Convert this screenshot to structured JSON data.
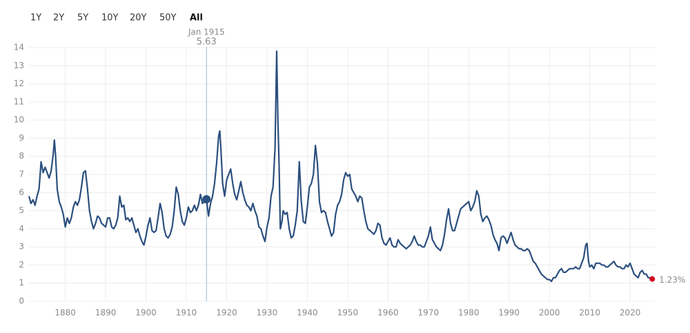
{
  "chart_data": {
    "type": "line",
    "range_buttons": [
      "1Y",
      "2Y",
      "5Y",
      "10Y",
      "20Y",
      "50Y",
      "All"
    ],
    "selected_range": "All",
    "color": "#2b4f7e",
    "grid": true,
    "xlim": [
      1871,
      2026.3
    ],
    "xticks": [
      1880,
      1890,
      1900,
      1910,
      1920,
      1930,
      1940,
      1950,
      1960,
      1970,
      1980,
      1990,
      2000,
      2010,
      2020
    ],
    "ylim": [
      0,
      14
    ],
    "yticks": [
      0,
      1,
      2,
      3,
      4,
      5,
      6,
      7,
      8,
      9,
      10,
      11,
      12,
      13,
      14
    ],
    "hover": {
      "label": "Jan 1915",
      "x": 1915,
      "value": 5.63,
      "color": "#2b4f7e",
      "line_color": "#9bb8cc"
    },
    "current": {
      "value": 1.23,
      "label": "1.23%",
      "color": "#d0021b"
    },
    "x": [
      1871,
      1871.5,
      1872,
      1872.5,
      1873,
      1873.5,
      1874,
      1874.5,
      1875,
      1875.5,
      1876,
      1876.5,
      1877,
      1877.3,
      1877.6,
      1878,
      1878.5,
      1879,
      1879.5,
      1880,
      1880.5,
      1881,
      1881.5,
      1882,
      1882.5,
      1883,
      1883.5,
      1884,
      1884.5,
      1885,
      1885.5,
      1886,
      1886.5,
      1887,
      1887.5,
      1888,
      1888.5,
      1889,
      1889.5,
      1890,
      1890.5,
      1891,
      1891.5,
      1892,
      1892.5,
      1893,
      1893.5,
      1894,
      1894.5,
      1895,
      1895.5,
      1896,
      1896.5,
      1897,
      1897.5,
      1898,
      1898.5,
      1899,
      1899.5,
      1900,
      1900.5,
      1901,
      1901.5,
      1902,
      1902.5,
      1903,
      1903.5,
      1904,
      1904.5,
      1905,
      1905.5,
      1906,
      1906.5,
      1907,
      1907.5,
      1908,
      1908.5,
      1909,
      1909.5,
      1910,
      1910.5,
      1911,
      1911.5,
      1912,
      1912.5,
      1913,
      1913.5,
      1914,
      1914.5,
      1915,
      1915.5,
      1916,
      1916.5,
      1917,
      1917.5,
      1918,
      1918.3,
      1918.6,
      1919,
      1919.5,
      1920,
      1920.5,
      1921,
      1921.5,
      1922,
      1922.5,
      1923,
      1923.5,
      1924,
      1924.5,
      1925,
      1925.5,
      1926,
      1926.5,
      1927,
      1927.5,
      1928,
      1928.5,
      1929,
      1929.5,
      1930,
      1930.5,
      1931,
      1931.5,
      1932,
      1932.4,
      1932.7,
      1933,
      1933.3,
      1933.7,
      1934,
      1934.5,
      1935,
      1935.5,
      1936,
      1936.5,
      1937,
      1937.5,
      1938,
      1938.5,
      1939,
      1939.5,
      1940,
      1940.5,
      1941,
      1941.5,
      1942,
      1942.5,
      1943,
      1943.5,
      1944,
      1944.5,
      1945,
      1945.5,
      1946,
      1946.5,
      1947,
      1947.5,
      1948,
      1948.5,
      1949,
      1949.5,
      1950,
      1950.5,
      1951,
      1951.5,
      1952,
      1952.5,
      1953,
      1953.5,
      1954,
      1954.5,
      1955,
      1955.5,
      1956,
      1956.5,
      1957,
      1957.5,
      1958,
      1958.5,
      1959,
      1959.5,
      1960,
      1960.5,
      1961,
      1961.5,
      1962,
      1962.5,
      1963,
      1963.5,
      1964,
      1964.5,
      1965,
      1965.5,
      1966,
      1966.5,
      1967,
      1967.5,
      1968,
      1968.5,
      1969,
      1969.5,
      1970,
      1970.5,
      1971,
      1971.5,
      1972,
      1972.5,
      1973,
      1973.5,
      1974,
      1974.5,
      1975,
      1975.5,
      1976,
      1976.5,
      1977,
      1977.5,
      1978,
      1978.5,
      1979,
      1979.5,
      1980,
      1980.5,
      1981,
      1981.5,
      1982,
      1982.5,
      1983,
      1983.5,
      1984,
      1984.5,
      1985,
      1985.5,
      1986,
      1986.5,
      1987,
      1987.5,
      1988,
      1988.5,
      1989,
      1989.5,
      1990,
      1990.5,
      1991,
      1991.5,
      1992,
      1992.5,
      1993,
      1993.5,
      1994,
      1994.5,
      1995,
      1995.5,
      1996,
      1996.5,
      1997,
      1997.5,
      1998,
      1998.5,
      1999,
      1999.5,
      2000,
      2000.5,
      2001,
      2001.5,
      2002,
      2002.5,
      2003,
      2003.5,
      2004,
      2004.5,
      2005,
      2005.5,
      2006,
      2006.5,
      2007,
      2007.5,
      2008,
      2008.5,
      2009,
      2009.3,
      2009.7,
      2010,
      2010.5,
      2011,
      2011.5,
      2012,
      2012.5,
      2013,
      2013.5,
      2014,
      2014.5,
      2015,
      2015.5,
      2016,
      2016.5,
      2017,
      2017.5,
      2018,
      2018.5,
      2019,
      2019.5,
      2020,
      2020.5,
      2021,
      2021.5,
      2022,
      2022.5,
      2023,
      2023.5,
      2024,
      2024.5,
      2025,
      2025.5
    ],
    "values": [
      5.8,
      5.4,
      5.6,
      5.3,
      5.8,
      6.2,
      7.7,
      7.1,
      7.4,
      7.1,
      6.8,
      7.2,
      8.1,
      8.9,
      8.0,
      6.2,
      5.5,
      5.2,
      4.8,
      4.1,
      4.6,
      4.3,
      4.6,
      5.2,
      5.5,
      5.3,
      5.6,
      6.3,
      7.1,
      7.2,
      6.2,
      5.0,
      4.4,
      4.0,
      4.3,
      4.7,
      4.6,
      4.3,
      4.2,
      4.1,
      4.6,
      4.6,
      4.1,
      4.0,
      4.2,
      4.6,
      5.8,
      5.2,
      5.3,
      4.5,
      4.6,
      4.4,
      4.6,
      4.2,
      3.8,
      4.0,
      3.6,
      3.3,
      3.1,
      3.6,
      4.2,
      4.6,
      3.9,
      3.8,
      3.9,
      4.6,
      5.4,
      4.9,
      4.0,
      3.6,
      3.5,
      3.7,
      4.1,
      5.0,
      6.3,
      5.9,
      5.0,
      4.4,
      4.2,
      4.6,
      5.2,
      4.9,
      5.0,
      5.3,
      5.0,
      5.3,
      5.9,
      5.4,
      5.5,
      5.63,
      4.7,
      5.4,
      5.8,
      6.5,
      7.6,
      9.1,
      9.4,
      8.3,
      6.5,
      5.8,
      6.7,
      7.0,
      7.3,
      6.5,
      5.9,
      5.6,
      6.1,
      6.6,
      6.0,
      5.6,
      5.3,
      5.2,
      5.0,
      5.4,
      5.0,
      4.7,
      4.1,
      4.0,
      3.6,
      3.3,
      4.1,
      4.6,
      5.8,
      6.3,
      8.5,
      13.8,
      10.0,
      7.5,
      4.0,
      4.4,
      5.0,
      4.8,
      4.9,
      4.0,
      3.5,
      3.6,
      4.2,
      5.0,
      7.7,
      5.5,
      4.4,
      4.3,
      5.2,
      6.3,
      6.5,
      7.0,
      8.6,
      7.6,
      5.5,
      4.9,
      5.0,
      4.9,
      4.4,
      4.0,
      3.6,
      3.8,
      4.8,
      5.3,
      5.5,
      5.9,
      6.7,
      7.1,
      6.9,
      7.0,
      6.2,
      6.0,
      5.8,
      5.5,
      5.8,
      5.7,
      5.0,
      4.4,
      4.0,
      3.9,
      3.8,
      3.7,
      3.9,
      4.3,
      4.2,
      3.5,
      3.2,
      3.1,
      3.3,
      3.5,
      3.1,
      3.0,
      3.0,
      3.4,
      3.2,
      3.1,
      3.0,
      2.9,
      3.0,
      3.1,
      3.3,
      3.6,
      3.3,
      3.1,
      3.1,
      3.0,
      3.0,
      3.3,
      3.6,
      4.1,
      3.4,
      3.2,
      3.0,
      2.9,
      2.8,
      3.1,
      3.7,
      4.5,
      5.1,
      4.3,
      3.9,
      3.9,
      4.3,
      4.7,
      5.1,
      5.2,
      5.3,
      5.4,
      5.5,
      5.0,
      5.2,
      5.5,
      6.1,
      5.8,
      4.8,
      4.4,
      4.6,
      4.7,
      4.5,
      4.2,
      3.7,
      3.4,
      3.2,
      2.8,
      3.5,
      3.6,
      3.5,
      3.2,
      3.5,
      3.8,
      3.4,
      3.1,
      3.0,
      2.9,
      2.9,
      2.8,
      2.8,
      2.9,
      2.8,
      2.5,
      2.2,
      2.1,
      1.9,
      1.7,
      1.5,
      1.4,
      1.3,
      1.2,
      1.2,
      1.1,
      1.3,
      1.3,
      1.5,
      1.7,
      1.8,
      1.6,
      1.6,
      1.7,
      1.8,
      1.8,
      1.8,
      1.9,
      1.8,
      1.8,
      2.1,
      2.4,
      3.1,
      3.2,
      2.2,
      1.9,
      2.0,
      1.8,
      2.1,
      2.1,
      2.1,
      2.0,
      2.0,
      1.9,
      1.9,
      2.0,
      2.1,
      2.2,
      2.0,
      1.9,
      1.9,
      1.8,
      1.8,
      2.0,
      1.9,
      2.1,
      1.8,
      1.5,
      1.4,
      1.3,
      1.6,
      1.7,
      1.5,
      1.5,
      1.3,
      1.3,
      1.23
    ]
  }
}
